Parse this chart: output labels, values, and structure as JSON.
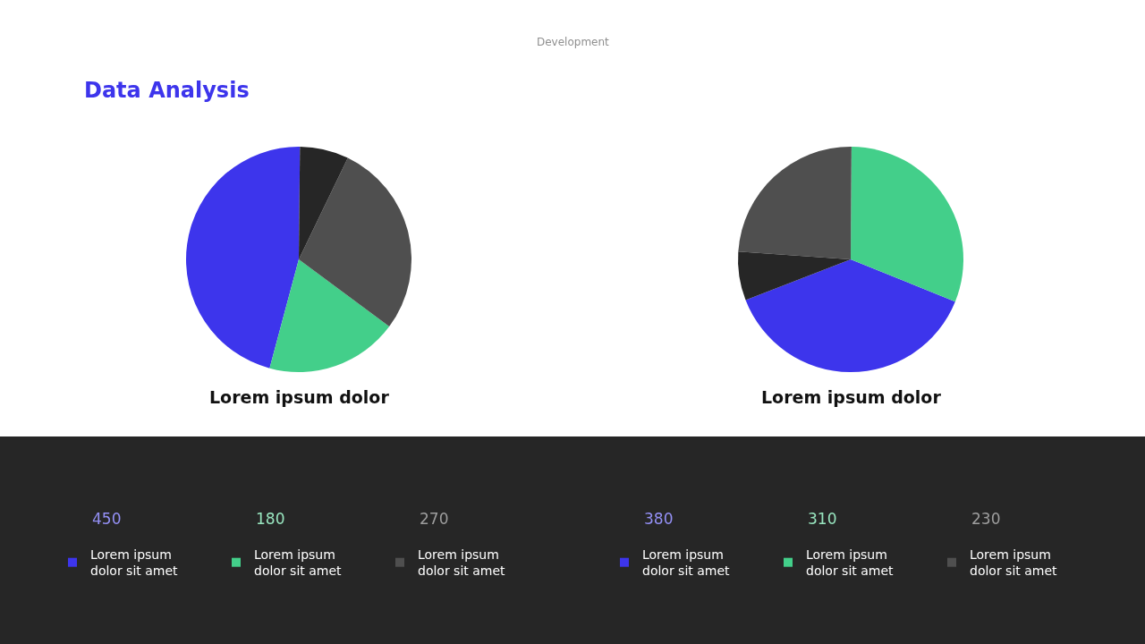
{
  "chart_data": [
    {
      "type": "other",
      "title": "Data Analysis",
      "annotations": [
        "Development"
      ]
    },
    {
      "type": "pie",
      "title": "Lorem ipsum dolor",
      "categories": [
        "Lorem ipsum dolor sit amet",
        "Lorem ipsum dolor sit amet",
        "Lorem ipsum dolor sit amet",
        null
      ],
      "values": [
        46,
        19,
        28,
        7
      ],
      "colors": [
        "#3d35ec",
        "#43cf8a",
        "#4f4f4f",
        "#262626"
      ],
      "annotations": [
        "450",
        "180",
        "270"
      ],
      "legend": "bottom"
    },
    {
      "type": "pie",
      "title": "Lorem ipsum dolor",
      "categories": [
        "Lorem ipsum dolor sit amet",
        "Lorem ipsum dolor sit amet",
        "Lorem ipsum dolor sit amet",
        null
      ],
      "values": [
        38,
        31,
        24,
        7
      ],
      "colors": [
        "#3d35ec",
        "#43cf8a",
        "#4f4f4f",
        "#262626"
      ],
      "annotations": [
        "380",
        "310",
        "230"
      ],
      "legend": "bottom"
    }
  ]
}
